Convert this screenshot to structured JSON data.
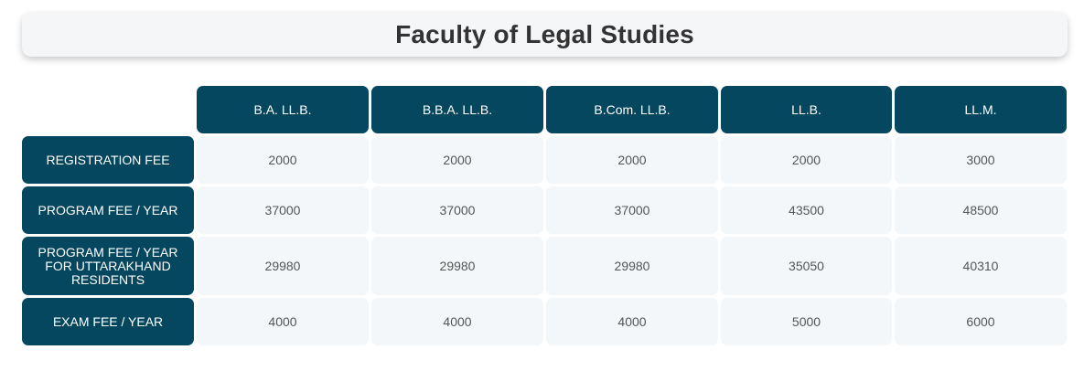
{
  "title": "Faculty of Legal Studies",
  "columns": [
    "B.A. LL.B.",
    "B.B.A. LL.B.",
    "B.Com. LL.B.",
    "LL.B.",
    "LL.M."
  ],
  "rows": [
    {
      "label": "REGISTRATION FEE",
      "values": [
        "2000",
        "2000",
        "2000",
        "2000",
        "3000"
      ]
    },
    {
      "label": "PROGRAM FEE / YEAR",
      "values": [
        "37000",
        "37000",
        "37000",
        "43500",
        "48500"
      ]
    },
    {
      "label": "PROGRAM FEE / YEAR FOR UTTARAKHAND RESIDENTS",
      "values": [
        "29980",
        "29980",
        "29980",
        "35050",
        "40310"
      ]
    },
    {
      "label": "EXAM FEE / YEAR",
      "values": [
        "4000",
        "4000",
        "4000",
        "5000",
        "6000"
      ]
    }
  ],
  "colors": {
    "header_bg": "#05475f",
    "header_text": "#ffffff",
    "cell_bg": "#f3f7fa",
    "cell_text": "#555555",
    "title_bg": "#f5f6f8",
    "title_text": "#333333"
  }
}
